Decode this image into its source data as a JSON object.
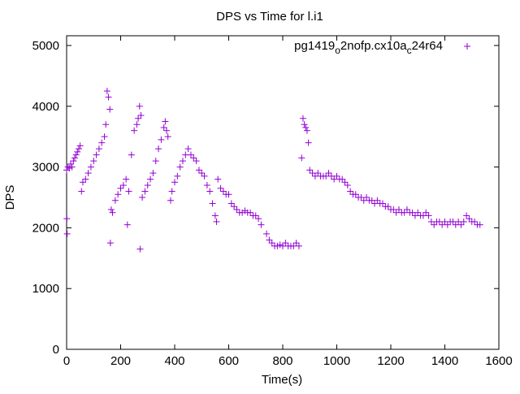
{
  "chart_data": {
    "type": "scatter",
    "title": "DPS vs Time for l.i1",
    "xlabel": "Time(s)",
    "ylabel": "DPS",
    "xlim": [
      0,
      1600
    ],
    "ylim": [
      0,
      5000
    ],
    "xticks": [
      "0",
      "200",
      "400",
      "600",
      "800",
      "1000",
      "1200",
      "1400",
      "1600"
    ],
    "yticks": [
      "0",
      "1000",
      "2000",
      "3000",
      "4000",
      "5000"
    ],
    "grid": false,
    "legend_position": "top-right",
    "series": [
      {
        "name": "pg1419_o2nofp.cx10a_c24r64",
        "legend_main": "pg1419",
        "legend_sub1": "o",
        "legend_mid": "2nofp.cx10a",
        "legend_sub2": "c",
        "legend_end": "24r64",
        "color": "#9400d3",
        "x": [
          0,
          1,
          2,
          5,
          10,
          15,
          20,
          25,
          30,
          35,
          40,
          45,
          50,
          55,
          60,
          70,
          80,
          90,
          100,
          110,
          120,
          130,
          140,
          145,
          150,
          155,
          160,
          162,
          165,
          170,
          180,
          190,
          200,
          210,
          220,
          225,
          230,
          240,
          250,
          260,
          265,
          270,
          272,
          275,
          280,
          290,
          300,
          310,
          320,
          330,
          340,
          350,
          360,
          365,
          370,
          375,
          385,
          390,
          400,
          410,
          420,
          430,
          440,
          450,
          460,
          470,
          480,
          490,
          500,
          510,
          520,
          530,
          540,
          550,
          555,
          560,
          570,
          580,
          590,
          600,
          610,
          620,
          630,
          640,
          650,
          660,
          670,
          680,
          690,
          700,
          710,
          720,
          740,
          750,
          760,
          770,
          780,
          790,
          800,
          810,
          820,
          830,
          840,
          850,
          860,
          870,
          875,
          880,
          885,
          890,
          895,
          900,
          910,
          920,
          930,
          940,
          950,
          960,
          970,
          980,
          990,
          1000,
          1010,
          1020,
          1030,
          1040,
          1050,
          1060,
          1070,
          1080,
          1090,
          1100,
          1110,
          1120,
          1130,
          1140,
          1150,
          1160,
          1170,
          1180,
          1190,
          1200,
          1210,
          1220,
          1230,
          1240,
          1250,
          1260,
          1270,
          1280,
          1290,
          1300,
          1310,
          1320,
          1330,
          1340,
          1350,
          1360,
          1370,
          1380,
          1390,
          1400,
          1410,
          1420,
          1430,
          1440,
          1450,
          1460,
          1470,
          1480,
          1490,
          1500,
          1510,
          1520,
          1530
        ],
        "y": [
          2950,
          2150,
          1900,
          3000,
          2980,
          3050,
          3000,
          3100,
          3150,
          3200,
          3250,
          3300,
          3350,
          2600,
          2750,
          2800,
          2900,
          3000,
          3100,
          3200,
          3300,
          3400,
          3500,
          3700,
          4250,
          4150,
          3950,
          1750,
          2300,
          2250,
          2450,
          2550,
          2650,
          2700,
          2800,
          2050,
          2600,
          3200,
          3600,
          3700,
          3800,
          4000,
          1650,
          3850,
          2500,
          2600,
          2700,
          2800,
          2900,
          3100,
          3300,
          3450,
          3650,
          3750,
          3600,
          3500,
          2450,
          2600,
          2750,
          2850,
          3000,
          3100,
          3200,
          3300,
          3200,
          3150,
          3100,
          2950,
          2900,
          2850,
          2700,
          2600,
          2400,
          2200,
          2100,
          2800,
          2650,
          2600,
          2550,
          2550,
          2400,
          2350,
          2300,
          2250,
          2250,
          2280,
          2250,
          2250,
          2200,
          2200,
          2150,
          2050,
          1900,
          1800,
          1750,
          1700,
          1700,
          1720,
          1700,
          1750,
          1700,
          1700,
          1700,
          1750,
          1700,
          3150,
          3800,
          3700,
          3650,
          3600,
          3400,
          2950,
          2900,
          2850,
          2900,
          2850,
          2850,
          2850,
          2900,
          2850,
          2800,
          2850,
          2800,
          2800,
          2750,
          2700,
          2600,
          2550,
          2550,
          2500,
          2500,
          2450,
          2500,
          2450,
          2450,
          2400,
          2450,
          2400,
          2400,
          2350,
          2350,
          2300,
          2300,
          2250,
          2300,
          2250,
          2250,
          2300,
          2250,
          2250,
          2200,
          2250,
          2200,
          2200,
          2250,
          2200,
          2100,
          2050,
          2100,
          2100,
          2050,
          2100,
          2050,
          2100,
          2100,
          2050,
          2100,
          2050,
          2100,
          2200,
          2150,
          2100,
          2100,
          2050,
          2050
        ]
      }
    ]
  }
}
